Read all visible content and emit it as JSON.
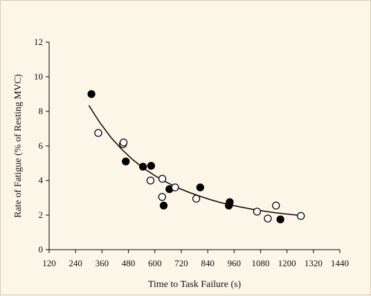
{
  "chart_data": {
    "type": "scatter",
    "title": "",
    "xlabel": "Time to Task Failure (s)",
    "ylabel": "Rate of Fatigue (% of Resting MVC)",
    "xlim": [
      120,
      1440
    ],
    "ylim": [
      0,
      12
    ],
    "xticks": [
      120,
      240,
      360,
      480,
      600,
      720,
      840,
      960,
      1080,
      1200,
      1320,
      1440
    ],
    "yticks": [
      0,
      2,
      4,
      6,
      8,
      10,
      12
    ],
    "grid": false,
    "legend": "none",
    "series": [
      {
        "marker": "filled-circle",
        "color": "#000000",
        "points": [
          [
            312,
            9.0
          ],
          [
            468,
            5.1
          ],
          [
            546,
            4.8
          ],
          [
            583,
            4.85
          ],
          [
            640,
            2.55
          ],
          [
            666,
            3.5
          ],
          [
            806,
            3.6
          ],
          [
            936,
            2.55
          ],
          [
            940,
            2.75
          ],
          [
            1170,
            1.75
          ]
        ]
      },
      {
        "marker": "open-circle",
        "color": "#000000",
        "points": [
          [
            343,
            6.75
          ],
          [
            455,
            6.1
          ],
          [
            458,
            6.2
          ],
          [
            580,
            4.0
          ],
          [
            633,
            3.05
          ],
          [
            634,
            4.1
          ],
          [
            692,
            3.6
          ],
          [
            788,
            2.95
          ],
          [
            1064,
            2.2
          ],
          [
            1113,
            1.8
          ],
          [
            1150,
            2.55
          ],
          [
            1263,
            1.95
          ]
        ]
      },
      {
        "type": "fit-curve",
        "color": "#000000",
        "points": [
          [
            300,
            8.35
          ],
          [
            350,
            7.35
          ],
          [
            400,
            6.5
          ],
          [
            450,
            5.8
          ],
          [
            500,
            5.2
          ],
          [
            550,
            4.7
          ],
          [
            600,
            4.28
          ],
          [
            650,
            3.92
          ],
          [
            700,
            3.6
          ],
          [
            750,
            3.34
          ],
          [
            800,
            3.11
          ],
          [
            850,
            2.9
          ],
          [
            900,
            2.72
          ],
          [
            950,
            2.57
          ],
          [
            1000,
            2.44
          ],
          [
            1050,
            2.32
          ],
          [
            1100,
            2.22
          ],
          [
            1150,
            2.13
          ],
          [
            1200,
            2.06
          ],
          [
            1260,
            1.98
          ]
        ]
      }
    ]
  }
}
